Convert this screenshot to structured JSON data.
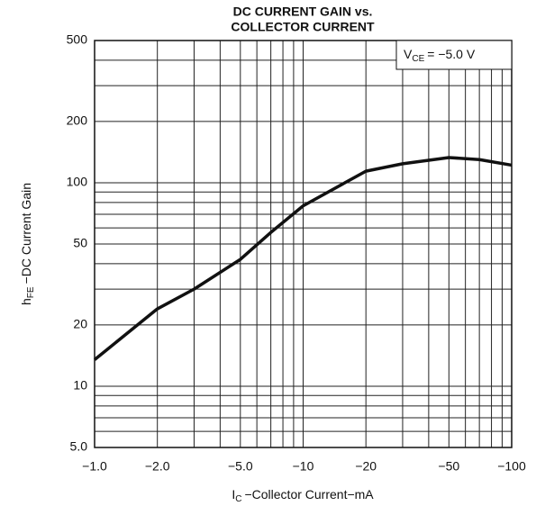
{
  "chart_data": {
    "type": "line",
    "title": [
      "DC CURRENT GAIN vs.",
      "COLLECTOR CURRENT"
    ],
    "x_label": {
      "main": "I",
      "sub": "C",
      "rest": "−Collector Current−mA"
    },
    "y_label": {
      "main": "h",
      "sub": "FE",
      "rest": "−DC Current Gain"
    },
    "annotation": {
      "main": "V",
      "sub": "CE",
      "rest": "= −5.0 V"
    },
    "x_scale": "log",
    "y_scale": "log",
    "x": [
      -1,
      -2,
      -3,
      -5,
      -7,
      -10,
      -20,
      -30,
      -50,
      -70,
      -100
    ],
    "series": [
      {
        "name": "hFE",
        "color": "#111111",
        "values": [
          13.5,
          24,
          30,
          42,
          57,
          77,
          114,
          124,
          133,
          130,
          122
        ]
      }
    ],
    "xlim": [
      -1,
      -100
    ],
    "ylim": [
      5,
      500
    ],
    "xticks": [
      {
        "value": -1,
        "label": "−1.0"
      },
      {
        "value": -2,
        "label": "−2.0"
      },
      {
        "value": -5,
        "label": "−5.0"
      },
      {
        "value": -10,
        "label": "−10"
      },
      {
        "value": -20,
        "label": "−20"
      },
      {
        "value": -50,
        "label": "−50"
      },
      {
        "value": -100,
        "label": "−100"
      }
    ],
    "yticks": [
      {
        "value": 5,
        "label": "5.0"
      },
      10,
      20,
      50,
      100,
      200,
      500
    ],
    "x_minor_grid": [
      -3,
      -4,
      -6,
      -7,
      -8,
      -9,
      -30,
      -40,
      -60,
      -70,
      -80,
      -90
    ],
    "y_minor_grid": [
      6,
      7,
      8,
      9,
      30,
      40,
      60,
      70,
      80,
      90,
      300,
      400
    ],
    "grid": true
  }
}
